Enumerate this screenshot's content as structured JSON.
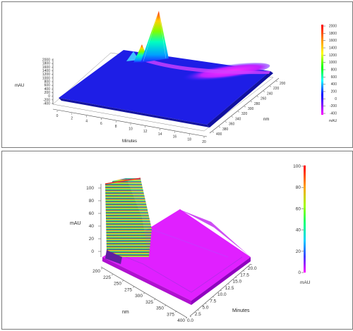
{
  "chart_data": [
    {
      "type": "surface3d",
      "title": "",
      "z_label": "mAU",
      "x_label": "Minutes",
      "y_label": "nm",
      "z_ticks": [
        "2000",
        "1800",
        "1600",
        "1400",
        "1200",
        "1000",
        "800",
        "600",
        "400",
        "200",
        "0",
        "-200",
        "-400"
      ],
      "x_ticks": [
        "0",
        "2",
        "4",
        "6",
        "8",
        "10",
        "12",
        "14",
        "16",
        "18",
        "20"
      ],
      "y_ticks": [
        "400",
        "380",
        "360",
        "340",
        "320",
        "300",
        "280",
        "260",
        "240",
        "220",
        "200"
      ],
      "colorbar_ticks": [
        "2000",
        "1800",
        "1600",
        "1400",
        "1200",
        "1000",
        "800",
        "600",
        "400",
        "200",
        "0",
        "-200",
        "-400"
      ],
      "colorbar_unit": "mAU",
      "zlim": [
        -400,
        2000
      ],
      "peaks": [
        {
          "minutes": 6.5,
          "nm": 210,
          "mAU": 2000
        },
        {
          "minutes": 5.5,
          "nm": 215,
          "mAU": 500
        },
        {
          "minutes": 5.0,
          "nm": 220,
          "mAU": 400
        }
      ]
    },
    {
      "type": "surface3d",
      "title": "",
      "z_label": "mAU",
      "x_label": "Minutes",
      "y_label": "nm",
      "z_ticks": [
        "100",
        "80",
        "60",
        "40",
        "20",
        "0"
      ],
      "x_ticks": [
        "0.0",
        "2.5",
        "5.0",
        "7.5",
        "10.0",
        "12.5",
        "15.0",
        "17.5",
        "20.0"
      ],
      "y_ticks": [
        "200",
        "225",
        "250",
        "275",
        "300",
        "325",
        "350",
        "375",
        "400"
      ],
      "colorbar_ticks": [
        "100",
        "80",
        "60",
        "40",
        "20",
        "0"
      ],
      "colorbar_unit": "mAU",
      "zlim": [
        0,
        100
      ],
      "peaks": [
        {
          "minutes": 2.5,
          "nm": 210,
          "mAU": 100
        },
        {
          "minutes": 4.5,
          "nm": 210,
          "mAU": 100
        },
        {
          "minutes": 3.5,
          "nm": 260,
          "mAU": 90
        }
      ]
    }
  ]
}
